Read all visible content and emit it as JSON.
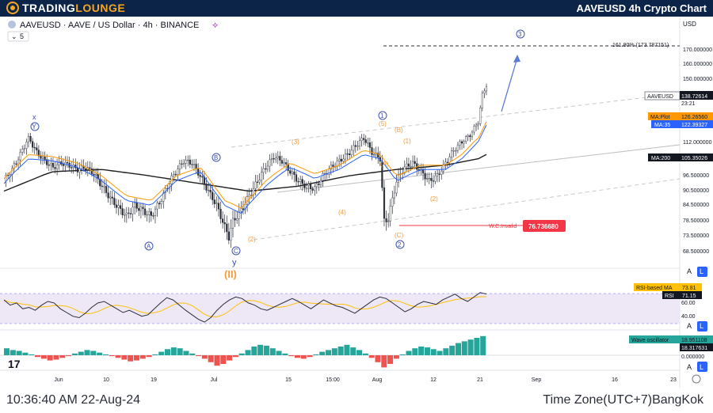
{
  "header": {
    "logo_text_1": "TRADING",
    "logo_text_2": "LOUNGE",
    "chart_title": "AAVEUSD 4h Crypto Chart"
  },
  "symbol_info": {
    "label": "AAVEUSD · AAVE / US Dollar · 4h · BINANCE",
    "indicator_count": "5"
  },
  "footer": {
    "time_left": "10:36:40 AM 22-Aug-24",
    "time_right": "Time Zone(UTC+7)BangKok"
  },
  "price_axis": {
    "currency": "USD",
    "buttons": {
      "auto": "A",
      "log": "L"
    }
  },
  "colors": {
    "up": "#26a69a",
    "down": "#ef5350",
    "fib": "#ff9800",
    "ma35": "#2962ff",
    "ma200": "#1e1e1e",
    "invalid": "#f23645",
    "wave_blue": "#3f51b5",
    "rsi": "#7e57c2",
    "rsi_ma": "#ffc107",
    "rsi_band": "#ede7f6",
    "osc_up": "#26a69a",
    "osc_down": "#ef5350"
  },
  "chart_data": {
    "type": "candlestick",
    "symbol": "AAVEUSD",
    "timeframe": "4h",
    "exchange": "BINANCE",
    "x_axis_labels": [
      "Jun",
      "10",
      "19",
      "Jul",
      "15",
      "15:00",
      "Aug",
      "12",
      "21",
      "Sep",
      "16",
      "23"
    ],
    "y_axis": {
      "ticks": [
        170.0,
        160.0,
        150.0,
        112.0,
        96.5,
        90.5,
        84.5,
        78.5,
        73.5,
        68.5
      ],
      "tick_labels": [
        "170.000000",
        "160.000000",
        "150.000000",
        "112.000000",
        "96.500000",
        "90.500000",
        "84.500000",
        "78.500000",
        "73.500000",
        "68.500000"
      ]
    },
    "price_path": [
      [
        0,
        94
      ],
      [
        2,
        99
      ],
      [
        4,
        106
      ],
      [
        6,
        114
      ],
      [
        8,
        107
      ],
      [
        10,
        103
      ],
      [
        12,
        100
      ],
      [
        14,
        102
      ],
      [
        16,
        101
      ],
      [
        18,
        99
      ],
      [
        20,
        100
      ],
      [
        22,
        97
      ],
      [
        24,
        92
      ],
      [
        26,
        87
      ],
      [
        28,
        83
      ],
      [
        30,
        80
      ],
      [
        32,
        84
      ],
      [
        34,
        82
      ],
      [
        36,
        80
      ],
      [
        38,
        85
      ],
      [
        40,
        92
      ],
      [
        42,
        98
      ],
      [
        44,
        103
      ],
      [
        46,
        102
      ],
      [
        48,
        96
      ],
      [
        50,
        90
      ],
      [
        52,
        84
      ],
      [
        54,
        76
      ],
      [
        55,
        73
      ],
      [
        56,
        78
      ],
      [
        58,
        82
      ],
      [
        60,
        88
      ],
      [
        62,
        94
      ],
      [
        64,
        100
      ],
      [
        66,
        105
      ],
      [
        68,
        103
      ],
      [
        70,
        98
      ],
      [
        72,
        94
      ],
      [
        74,
        92
      ],
      [
        76,
        91
      ],
      [
        78,
        96
      ],
      [
        80,
        100
      ],
      [
        82,
        103
      ],
      [
        84,
        106
      ],
      [
        86,
        110
      ],
      [
        88,
        114
      ],
      [
        90,
        107
      ],
      [
        92,
        104
      ],
      [
        93,
        78
      ],
      [
        94,
        79
      ],
      [
        96,
        94
      ],
      [
        98,
        100
      ],
      [
        100,
        102
      ],
      [
        102,
        98
      ],
      [
        104,
        94
      ],
      [
        106,
        96
      ],
      [
        108,
        102
      ],
      [
        110,
        108
      ],
      [
        112,
        112
      ],
      [
        114,
        116
      ],
      [
        116,
        124
      ],
      [
        117,
        140
      ],
      [
        118,
        146
      ]
    ],
    "ma35_path": [
      [
        0,
        93
      ],
      [
        6,
        104
      ],
      [
        12,
        103
      ],
      [
        18,
        100
      ],
      [
        24,
        94
      ],
      [
        30,
        86
      ],
      [
        36,
        84
      ],
      [
        42,
        94
      ],
      [
        48,
        98
      ],
      [
        54,
        84
      ],
      [
        58,
        81
      ],
      [
        64,
        92
      ],
      [
        70,
        100
      ],
      [
        76,
        95
      ],
      [
        82,
        99
      ],
      [
        88,
        106
      ],
      [
        92,
        104
      ],
      [
        96,
        94
      ],
      [
        102,
        99
      ],
      [
        108,
        99
      ],
      [
        112,
        104
      ],
      [
        116,
        112
      ],
      [
        118,
        122
      ]
    ],
    "ma200_path": [
      [
        0,
        90
      ],
      [
        12,
        98
      ],
      [
        24,
        99
      ],
      [
        36,
        96
      ],
      [
        48,
        93
      ],
      [
        60,
        90
      ],
      [
        72,
        92
      ],
      [
        84,
        96
      ],
      [
        96,
        99
      ],
      [
        108,
        101
      ],
      [
        116,
        104
      ],
      [
        118,
        106
      ]
    ],
    "price_tags": [
      {
        "label": "AAVEUSD",
        "value": "138.72614",
        "sub": "23:21"
      },
      {
        "label": "MA:Plot",
        "value": "126.26560"
      },
      {
        "label": "MA:35",
        "value": "122.39327"
      },
      {
        "label": "MA:200",
        "value": "105.35026"
      }
    ],
    "fib_target": {
      "label": "161.80% (173.787151)",
      "value": 173.787151
    },
    "invalidation": {
      "label": "W.C.Invalid",
      "value": "76.736680"
    },
    "wave_labels": {
      "orange": [
        "(1)",
        "(2)",
        "(3)",
        "(4)",
        "(5)",
        "(A)",
        "(B)",
        "(C)",
        "(1)",
        "(2)",
        "(5)"
      ],
      "blue_circle": [
        "A",
        "B",
        "C",
        "1",
        "2",
        "3"
      ],
      "letters": [
        "Y",
        "y"
      ],
      "degree": "(II)"
    },
    "rsi": {
      "title_ma": "RSI-based MA",
      "value_ma": "73.81",
      "title_rsi": "RSI",
      "value_rsi": "71.15",
      "ticks": [
        "60.00",
        "40.00"
      ],
      "values": [
        62,
        55,
        58,
        50,
        52,
        48,
        55,
        60,
        58,
        50,
        45,
        40,
        38,
        44,
        52,
        58,
        60,
        55,
        50,
        45,
        48,
        44,
        40,
        42,
        50,
        58,
        65,
        62,
        55,
        48,
        42,
        36,
        32,
        38,
        48,
        56,
        62,
        66,
        64,
        58,
        55,
        50,
        48,
        52,
        56,
        60,
        64,
        60,
        55,
        50,
        56,
        62,
        58,
        54,
        52,
        48,
        44,
        50,
        56,
        62,
        66,
        64,
        58,
        52,
        46,
        50,
        56,
        60,
        58,
        56,
        62,
        66,
        70,
        64,
        60,
        66,
        72,
        70
      ]
    },
    "oscillator": {
      "title": "Wave oscillator",
      "value_1": "18.951108",
      "value_2": "18.317631",
      "tick": "0.000000",
      "values": [
        8,
        6,
        5,
        3,
        1,
        -2,
        -4,
        -6,
        -5,
        -3,
        -1,
        2,
        4,
        6,
        5,
        3,
        1,
        -1,
        -3,
        -5,
        -7,
        -6,
        -4,
        -2,
        1,
        4,
        7,
        9,
        8,
        5,
        2,
        -1,
        -4,
        -8,
        -12,
        -10,
        -6,
        -2,
        2,
        6,
        10,
        12,
        11,
        8,
        5,
        2,
        -1,
        -3,
        -4,
        -2,
        1,
        4,
        6,
        8,
        10,
        12,
        9,
        6,
        2,
        -3,
        -8,
        -14,
        -10,
        -4,
        1,
        5,
        8,
        10,
        9,
        7,
        5,
        8,
        11,
        14,
        16,
        18,
        20,
        22
      ]
    }
  }
}
